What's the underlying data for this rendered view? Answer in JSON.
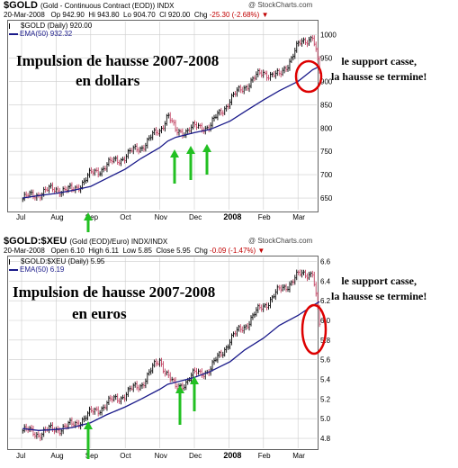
{
  "colors": {
    "bar": "#000000",
    "bar_up": "#c04060",
    "ema": "#1a1a8a",
    "arrow": "#22c022",
    "circle": "#dd0000",
    "grid": "#cccccc"
  },
  "chart_data": [
    {
      "type": "line",
      "symbol": "$GOLD",
      "description": "(Gold - Continuous Contract (EOD)) INDX",
      "brand": "@ StockCharts.com",
      "date": "20-Mar-2008",
      "quote": {
        "op_label": "Op",
        "op": "942.90",
        "hi_label": "Hi",
        "hi": "943.80",
        "lo_label": "Lo",
        "lo": "904.70",
        "cl_label": "Cl",
        "cl": "920.00",
        "chg_label": "Chg",
        "chg": "-25.30 (-2.68%)"
      },
      "legend_price": "$GOLD (Daily) 920.00",
      "legend_ema": "EMA(50) 932.32",
      "title_line1": "Impulsion de hausse 2007-2008",
      "title_line2": "en dollars",
      "note_line1": "le support casse,",
      "note_line2": "la hausse se termine!",
      "x_labels": [
        "Jul",
        "Aug",
        "Sep",
        "Oct",
        "Nov",
        "Dec",
        "2008",
        "Feb",
        "Mar"
      ],
      "y_ticks": [
        650,
        700,
        750,
        800,
        850,
        900,
        950,
        1000
      ],
      "ylim": [
        625,
        1030
      ],
      "x": [
        "Jul-02",
        "Jul-16",
        "Aug-01",
        "Aug-15",
        "Sep-01",
        "Sep-15",
        "Oct-01",
        "Oct-15",
        "Nov-01",
        "Nov-08",
        "Nov-15",
        "Dec-01",
        "Dec-15",
        "Jan-02",
        "Jan-15",
        "Feb-01",
        "Feb-15",
        "Mar-01",
        "Mar-14",
        "Mar-20"
      ],
      "series": [
        {
          "name": "$GOLD (Daily)",
          "values": [
            648,
            660,
            670,
            665,
            700,
            720,
            740,
            760,
            795,
            830,
            790,
            800,
            805,
            860,
            890,
            920,
            910,
            975,
            1000,
            920
          ]
        },
        {
          "name": "EMA(50)",
          "values": [
            650,
            655,
            660,
            666,
            675,
            692,
            712,
            735,
            758,
            772,
            780,
            790,
            797,
            815,
            835,
            860,
            880,
            900,
            925,
            932
          ]
        }
      ]
    },
    {
      "type": "line",
      "symbol": "$GOLD:$XEU",
      "description": "(Gold (EOD)/Euro) INDX/INDX",
      "brand": "@ StockCharts.com",
      "date": "20-Mar-2008",
      "quote": {
        "op_label": "Open",
        "op": "6.10",
        "hi_label": "High",
        "hi": "6.11",
        "lo_label": "Low",
        "lo": "5.85",
        "cl_label": "Close",
        "cl": "5.95",
        "chg_label": "Chg",
        "chg": "-0.09 (-1.47%)"
      },
      "legend_price": "$GOLD:$XEU (Daily) 5.95",
      "legend_ema": "EMA(50) 6.19",
      "title_line1": "Impulsion de hausse 2007-2008",
      "title_line2": "en euros",
      "note_line1": "le support casse,",
      "note_line2": "la hausse se termine!",
      "x_labels": [
        "Jul",
        "Aug",
        "Sep",
        "Oct",
        "Nov",
        "Dec",
        "2008",
        "Feb",
        "Mar"
      ],
      "y_ticks": [
        4.8,
        5.0,
        5.2,
        5.4,
        5.6,
        5.8,
        6.0,
        6.2,
        6.4,
        6.6
      ],
      "ylim": [
        4.7,
        6.65
      ],
      "x": [
        "Jul-02",
        "Jul-16",
        "Aug-01",
        "Aug-15",
        "Sep-01",
        "Sep-15",
        "Oct-01",
        "Oct-15",
        "Nov-01",
        "Nov-08",
        "Nov-15",
        "Dec-01",
        "Dec-15",
        "Jan-02",
        "Jan-15",
        "Feb-01",
        "Feb-15",
        "Mar-01",
        "Mar-14",
        "Mar-20"
      ],
      "series": [
        {
          "name": "$GOLD:$XEU (Daily)",
          "values": [
            4.88,
            4.85,
            4.9,
            4.93,
            5.05,
            5.15,
            5.25,
            5.35,
            5.6,
            5.45,
            5.3,
            5.45,
            5.5,
            5.8,
            5.95,
            6.15,
            6.3,
            6.45,
            6.5,
            5.95
          ]
        },
        {
          "name": "EMA(50)",
          "values": [
            4.9,
            4.88,
            4.89,
            4.91,
            4.96,
            5.04,
            5.12,
            5.2,
            5.3,
            5.35,
            5.37,
            5.42,
            5.48,
            5.58,
            5.7,
            5.82,
            5.95,
            6.05,
            6.15,
            6.19
          ]
        }
      ]
    }
  ]
}
